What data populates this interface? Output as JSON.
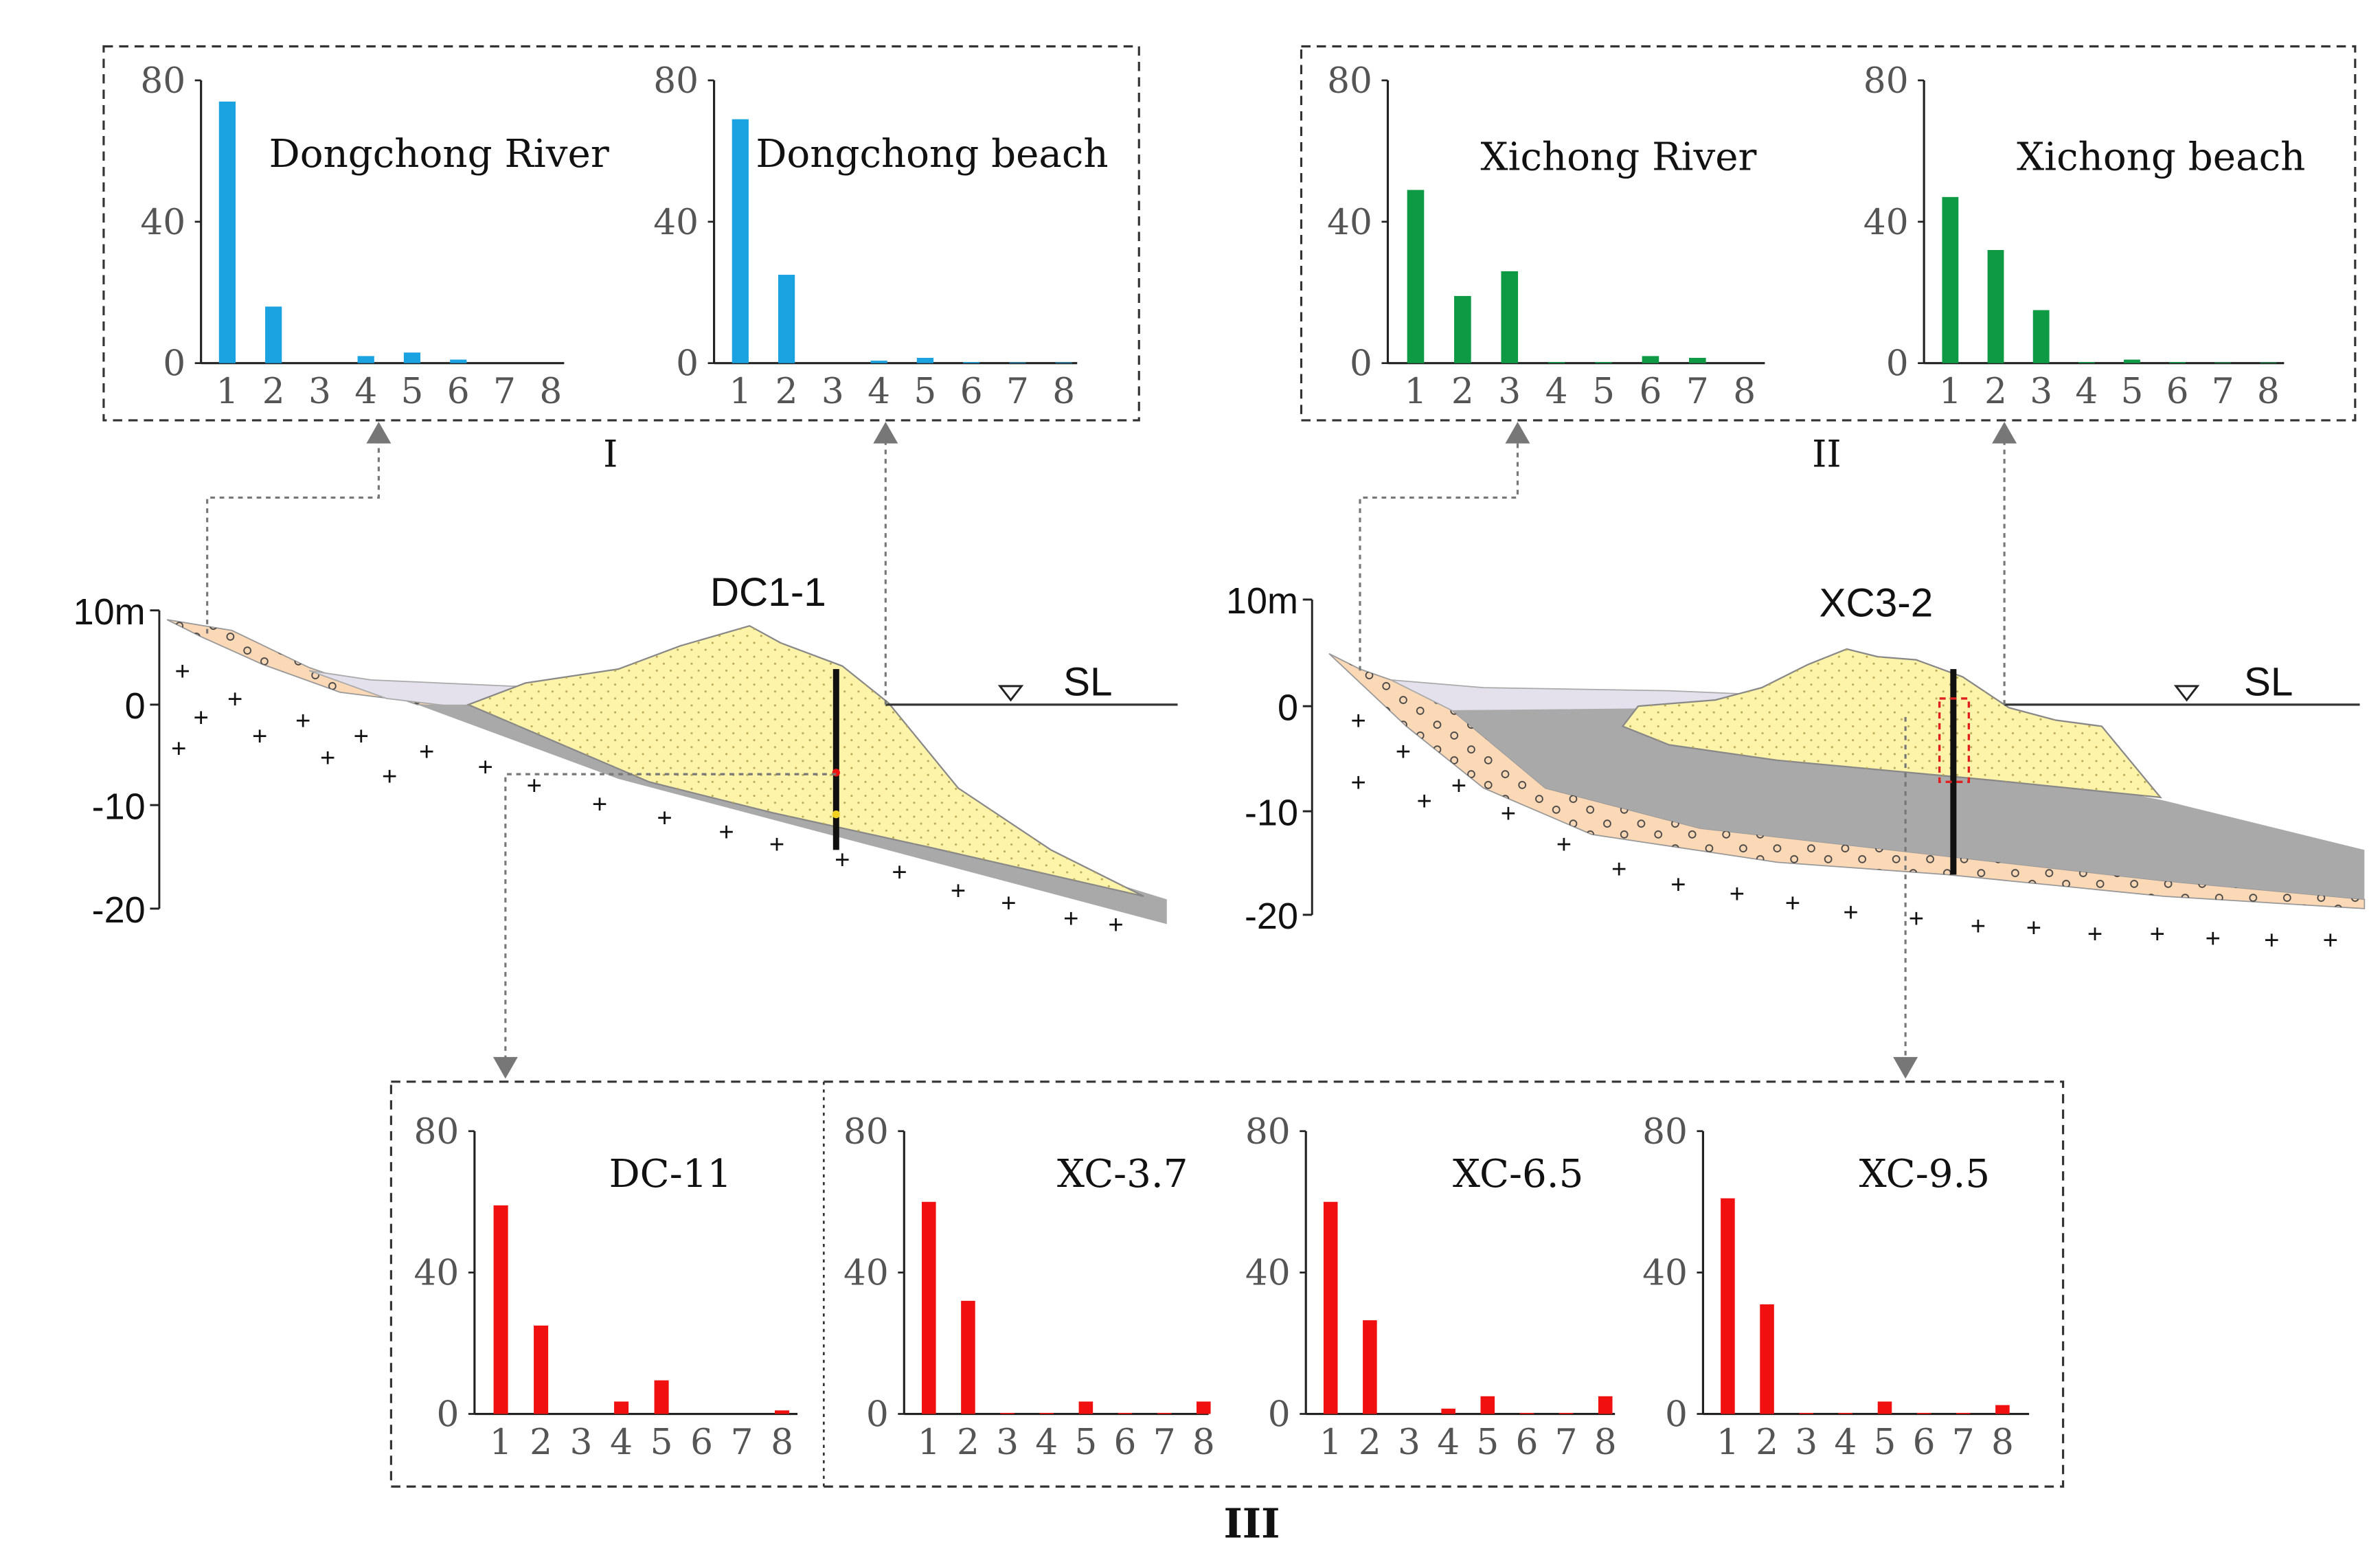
{
  "colors": {
    "blue": "#1aa3e0",
    "green": "#0e9a45",
    "red": "#f01010",
    "sand": "#fdf4a9",
    "gravel": "#fbd8b6",
    "mud": "#a9a9a9",
    "water": "#e4e0ec",
    "core": "#101010",
    "arrow": "#777777"
  },
  "group_labels": {
    "I": "I",
    "II": "II",
    "III": "III"
  },
  "profiles": {
    "dc": {
      "core_label": "DC1-1",
      "sea_level_label": "SL",
      "y_ticks": [
        "10m",
        "0",
        "-10",
        "-20"
      ]
    },
    "xc": {
      "core_label": "XC3-2",
      "sea_level_label": "SL",
      "y_ticks": [
        "10m",
        "0",
        "-10",
        "-20"
      ]
    }
  },
  "chart_data": [
    {
      "id": "dongchong_river",
      "type": "bar",
      "title": "Dongchong River",
      "color": "blue",
      "categories": [
        "1",
        "2",
        "3",
        "4",
        "5",
        "6",
        "7",
        "8"
      ],
      "values": [
        74,
        16,
        0,
        2,
        3,
        1,
        0,
        0
      ],
      "ylim": [
        0,
        80
      ],
      "yticks": [
        "80",
        "40",
        "0"
      ]
    },
    {
      "id": "dongchong_beach",
      "type": "bar",
      "title": "Dongchong beach",
      "color": "blue",
      "categories": [
        "1",
        "2",
        "3",
        "4",
        "5",
        "6",
        "7",
        "8"
      ],
      "values": [
        69,
        25,
        0,
        0.7,
        1.5,
        0.3,
        0.2,
        0.2
      ],
      "ylim": [
        0,
        80
      ],
      "yticks": [
        "80",
        "40",
        "0"
      ]
    },
    {
      "id": "xichong_river",
      "type": "bar",
      "title": "Xichong River",
      "color": "green",
      "categories": [
        "1",
        "2",
        "3",
        "4",
        "5",
        "6",
        "7",
        "8"
      ],
      "values": [
        49,
        19,
        26,
        0.3,
        0.3,
        2,
        1.5,
        0
      ],
      "ylim": [
        0,
        80
      ],
      "yticks": [
        "80",
        "40",
        "0"
      ]
    },
    {
      "id": "xichong_beach",
      "type": "bar",
      "title": "Xichong beach",
      "color": "green",
      "categories": [
        "1",
        "2",
        "3",
        "4",
        "5",
        "6",
        "7",
        "8"
      ],
      "values": [
        47,
        32,
        15,
        0.3,
        1,
        0.3,
        0.2,
        0.2
      ],
      "ylim": [
        0,
        80
      ],
      "yticks": [
        "80",
        "40",
        "0"
      ]
    },
    {
      "id": "dc_11",
      "type": "bar",
      "title": "DC-11",
      "color": "red",
      "categories": [
        "1",
        "2",
        "3",
        "4",
        "5",
        "6",
        "7",
        "8"
      ],
      "values": [
        59,
        25,
        0,
        3.5,
        9.5,
        0,
        0,
        1
      ],
      "ylim": [
        0,
        80
      ],
      "yticks": [
        "80",
        "40",
        "0"
      ]
    },
    {
      "id": "xc_3_7",
      "type": "bar",
      "title": "XC-3.7",
      "color": "red",
      "categories": [
        "1",
        "2",
        "3",
        "4",
        "5",
        "6",
        "7",
        "8"
      ],
      "values": [
        60,
        32,
        0.3,
        0.3,
        3.5,
        0.3,
        0.3,
        3.5
      ],
      "ylim": [
        0,
        80
      ],
      "yticks": [
        "80",
        "40",
        "0"
      ]
    },
    {
      "id": "xc_6_5",
      "type": "bar",
      "title": "XC-6.5",
      "color": "red",
      "categories": [
        "1",
        "2",
        "3",
        "4",
        "5",
        "6",
        "7",
        "8"
      ],
      "values": [
        60,
        26.5,
        0,
        1.5,
        5,
        0.3,
        0.3,
        5
      ],
      "ylim": [
        0,
        80
      ],
      "yticks": [
        "80",
        "40",
        "0"
      ]
    },
    {
      "id": "xc_9_5",
      "type": "bar",
      "title": "XC-9.5",
      "color": "red",
      "categories": [
        "1",
        "2",
        "3",
        "4",
        "5",
        "6",
        "7",
        "8"
      ],
      "values": [
        61,
        31,
        0.3,
        0.3,
        3.5,
        0.3,
        0.3,
        2.5
      ],
      "ylim": [
        0,
        80
      ],
      "yticks": [
        "80",
        "40",
        "0"
      ]
    }
  ]
}
